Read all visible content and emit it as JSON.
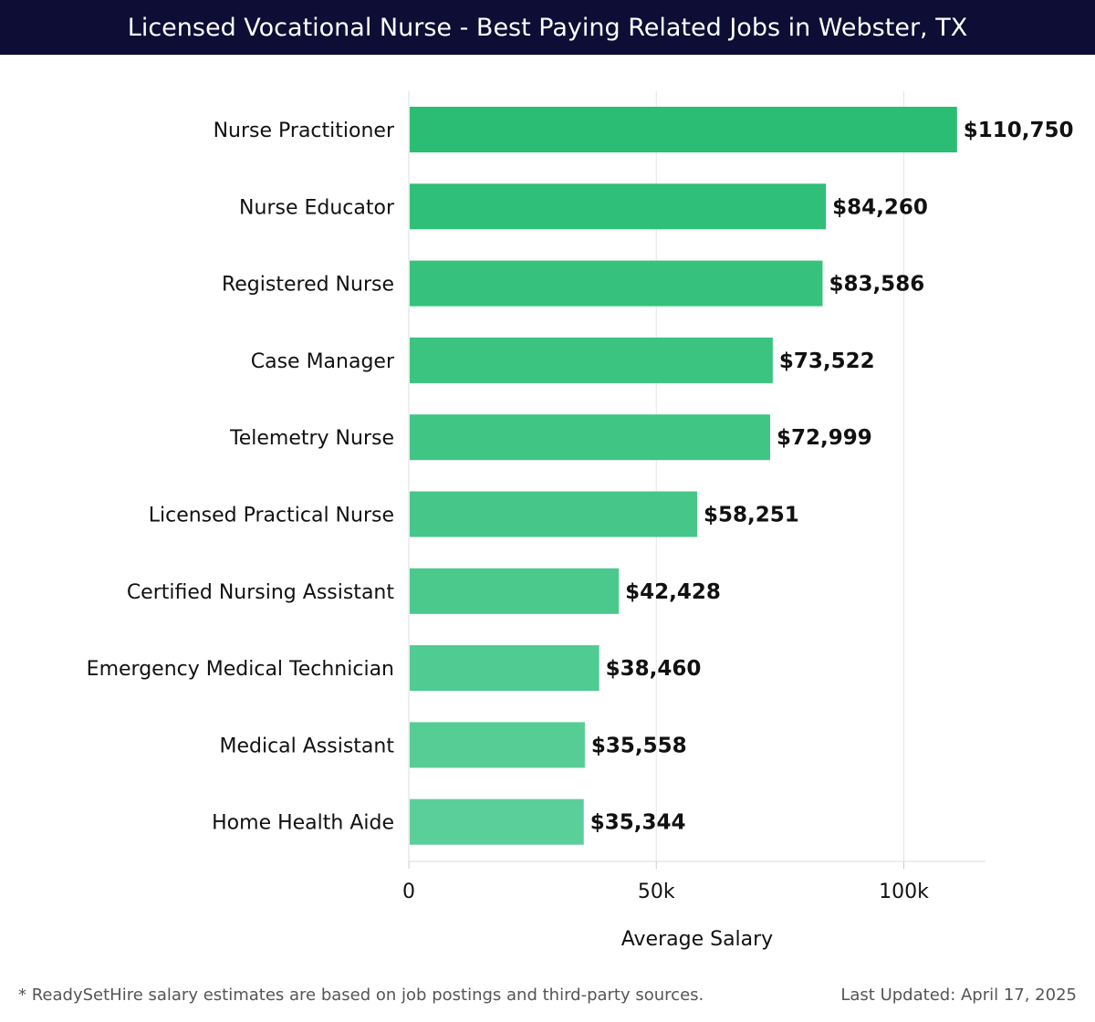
{
  "header": {
    "title": "Licensed Vocational Nurse - Best Paying Related Jobs in Webster, TX"
  },
  "chart_data": {
    "type": "bar",
    "orientation": "horizontal",
    "categories": [
      "Nurse Practitioner",
      "Nurse Educator",
      "Registered Nurse",
      "Case Manager",
      "Telemetry Nurse",
      "Licensed Practical Nurse",
      "Certified Nursing Assistant",
      "Emergency Medical Technician",
      "Medical Assistant",
      "Home Health Aide"
    ],
    "values": [
      110750,
      84260,
      83586,
      73522,
      72999,
      58251,
      42428,
      38460,
      35558,
      35344
    ],
    "data_labels": [
      "$110,750",
      "$84,260",
      "$83,586",
      "$73,522",
      "$72,999",
      "$58,251",
      "$42,428",
      "$38,460",
      "$35,558",
      "$35,344"
    ],
    "xlabel": "Average Salary",
    "xticks": [
      {
        "value": 0,
        "label": "0"
      },
      {
        "value": 50000,
        "label": "50k"
      },
      {
        "value": 100000,
        "label": "100k"
      }
    ],
    "xlim": [
      0,
      116500
    ],
    "grid": "vertical",
    "colors": {
      "bar_top": "#2bbd74",
      "bar_bottom": "#5bcf99",
      "grid": "#e6e6e6",
      "label": "#111111"
    }
  },
  "footer": {
    "note": "* ReadySetHire salary estimates are based on job postings and third-party sources.",
    "updated": "Last Updated: April 17, 2025"
  }
}
